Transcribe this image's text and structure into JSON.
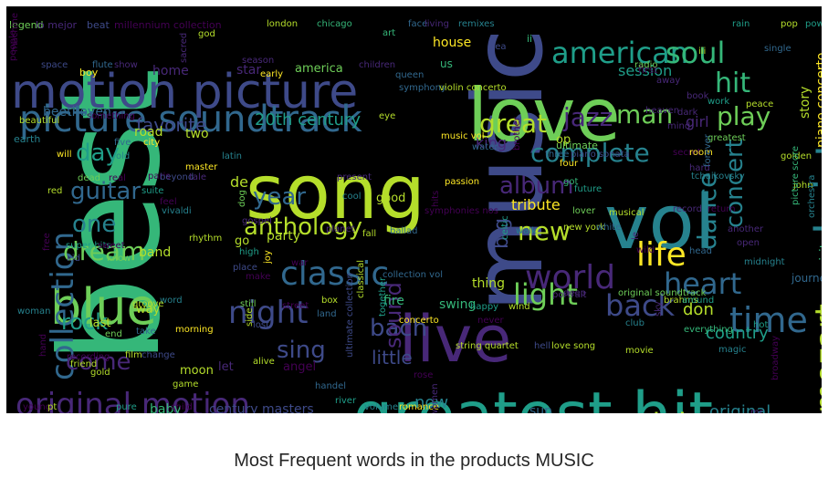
{
  "title": "Most Frequent words in the products MUSIC",
  "colors": {
    "background": "#000000",
    "palette": [
      "#440154",
      "#482878",
      "#3e4a89",
      "#31688e",
      "#26828e",
      "#1f9e89",
      "#35b779",
      "#6ece58",
      "#b5de2b",
      "#fde725"
    ]
  },
  "words": [
    {
      "text": "best",
      "color": "#35b779"
    },
    {
      "text": "music",
      "color": "#3e4a89"
    },
    {
      "text": "live",
      "color": "#482878"
    },
    {
      "text": "song",
      "color": "#b5de2b"
    },
    {
      "text": "vol",
      "color": "#26828e"
    },
    {
      "text": "love",
      "color": "#6ece58"
    },
    {
      "text": "greatest hit",
      "color": "#1f9e89"
    },
    {
      "text": "motion picture",
      "color": "#3e4a89"
    },
    {
      "text": "blue",
      "color": "#6ece58"
    },
    {
      "text": "picture soundtrack",
      "color": "#31688e"
    },
    {
      "text": "christmas",
      "color": "#26828e"
    },
    {
      "text": "collection",
      "color": "#31688e"
    },
    {
      "text": "original motion",
      "color": "#482878"
    },
    {
      "text": "american",
      "color": "#1f9e89"
    },
    {
      "text": "soul",
      "color": "#35b779"
    },
    {
      "text": "hit",
      "color": "#35b779"
    },
    {
      "text": "time",
      "color": "#31688e"
    },
    {
      "text": "world",
      "color": "#482878"
    },
    {
      "text": "night",
      "color": "#3e4a89"
    },
    {
      "text": "classic",
      "color": "#31688e"
    },
    {
      "text": "life",
      "color": "#fde725"
    },
    {
      "text": "mozart",
      "color": "#b5de2b"
    },
    {
      "text": "essential",
      "color": "#b5de2b"
    },
    {
      "text": "black",
      "color": "#482878"
    },
    {
      "text": "heart",
      "color": "#31688e"
    },
    {
      "text": "light",
      "color": "#6ece58"
    },
    {
      "text": "back",
      "color": "#3e4a89"
    },
    {
      "text": "dance",
      "color": "#26828e"
    },
    {
      "text": "play",
      "color": "#6ece58"
    },
    {
      "text": "man",
      "color": "#6ece58"
    },
    {
      "text": "jazz",
      "color": "#482878"
    },
    {
      "text": "great",
      "color": "#b5de2b"
    },
    {
      "text": "anthology",
      "color": "#b5de2b"
    },
    {
      "text": "complete",
      "color": "#26828e"
    },
    {
      "text": "year",
      "color": "#31688e"
    },
    {
      "text": "concert",
      "color": "#26828e"
    },
    {
      "text": "dream",
      "color": "#6ece58"
    },
    {
      "text": "guitar",
      "color": "#31688e"
    },
    {
      "text": "day",
      "color": "#1f9e89"
    },
    {
      "text": "one",
      "color": "#26828e"
    },
    {
      "text": "rock",
      "color": "#1f9e89"
    },
    {
      "text": "come",
      "color": "#482878"
    },
    {
      "text": "sing",
      "color": "#3e4a89"
    },
    {
      "text": "bach",
      "color": "#3e4a89"
    },
    {
      "text": "sound",
      "color": "#482878"
    },
    {
      "text": "album",
      "color": "#482878"
    },
    {
      "text": "new",
      "color": "#b5de2b"
    },
    {
      "text": "big",
      "color": "#3e4a89"
    },
    {
      "text": "favorite",
      "color": "#3e4a89"
    },
    {
      "text": "20th century",
      "color": "#1f9e89"
    },
    {
      "text": "little",
      "color": "#3e4a89"
    },
    {
      "text": "original",
      "color": "#26828e"
    },
    {
      "text": "now",
      "color": "#26828e"
    },
    {
      "text": "country",
      "color": "#1f9e89"
    },
    {
      "text": "session",
      "color": "#1f9e89"
    },
    {
      "text": "don",
      "color": "#b5de2b"
    },
    {
      "text": "girl",
      "color": "#482878"
    },
    {
      "text": "king",
      "color": "#482878"
    },
    {
      "text": "tribute",
      "color": "#fde725"
    },
    {
      "text": "piano concerto",
      "color": "#fde725"
    },
    {
      "text": "sun",
      "color": "#31688e"
    },
    {
      "text": "house",
      "color": "#fde725"
    },
    {
      "text": "home",
      "color": "#482878"
    },
    {
      "text": "star",
      "color": "#482878"
    },
    {
      "text": "beethoven",
      "color": "#31688e"
    },
    {
      "text": "road",
      "color": "#b5de2b"
    },
    {
      "text": "two",
      "color": "#b5de2b"
    },
    {
      "text": "de",
      "color": "#b5de2b"
    },
    {
      "text": "america",
      "color": "#6ece58"
    },
    {
      "text": "spirit",
      "color": "#35b779"
    },
    {
      "text": "story",
      "color": "#b5de2b"
    },
    {
      "text": "swing",
      "color": "#35b779"
    },
    {
      "text": "thing",
      "color": "#b5de2b"
    },
    {
      "text": "fire",
      "color": "#35b779"
    },
    {
      "text": "band",
      "color": "#b5de2b"
    },
    {
      "text": "way",
      "color": "#b5de2b"
    },
    {
      "text": "last",
      "color": "#b5de2b"
    },
    {
      "text": "let",
      "color": "#482878"
    },
    {
      "text": "moon",
      "color": "#b5de2b"
    },
    {
      "text": "angel",
      "color": "#440154"
    },
    {
      "text": "century masters",
      "color": "#3e4a89"
    },
    {
      "text": "baby",
      "color": "#35b779"
    },
    {
      "text": "party",
      "color": "#b5de2b"
    },
    {
      "text": "go",
      "color": "#b5de2b"
    },
    {
      "text": "journey",
      "color": "#31688e"
    },
    {
      "text": "good",
      "color": "#b5de2b"
    },
    {
      "text": "ultimate",
      "color": "#6ece58"
    },
    {
      "text": "eye",
      "color": "#b5de2b"
    },
    {
      "text": "first",
      "color": "#440154"
    },
    {
      "text": "op",
      "color": "#b5de2b"
    },
    {
      "text": "legend",
      "color": "#6ece58"
    },
    {
      "text": "lo mejor",
      "color": "#482878"
    },
    {
      "text": "beat",
      "color": "#3e4a89"
    },
    {
      "text": "millennium collection",
      "color": "#440154"
    },
    {
      "text": "london",
      "color": "#b5de2b"
    },
    {
      "text": "chicago",
      "color": "#35b779"
    },
    {
      "text": "art",
      "color": "#35b779"
    },
    {
      "text": "face",
      "color": "#31688e"
    },
    {
      "text": "living",
      "color": "#482878"
    },
    {
      "text": "remixes",
      "color": "#26828e"
    },
    {
      "text": "rain",
      "color": "#1f9e89"
    },
    {
      "text": "pop",
      "color": "#b5de2b"
    },
    {
      "text": "power",
      "color": "#1f9e89"
    },
    {
      "text": "god",
      "color": "#b5de2b"
    },
    {
      "text": "people",
      "color": "#440154"
    },
    {
      "text": "space",
      "color": "#3e4a89"
    },
    {
      "text": "flute",
      "color": "#31688e"
    },
    {
      "text": "show",
      "color": "#482878"
    },
    {
      "text": "sacred",
      "color": "#482878"
    },
    {
      "text": "season",
      "color": "#482878"
    },
    {
      "text": "children",
      "color": "#482878"
    },
    {
      "text": "sea",
      "color": "#3e4a89"
    },
    {
      "text": "single",
      "color": "#31688e"
    },
    {
      "text": "boy",
      "color": "#fde725"
    },
    {
      "text": "early",
      "color": "#fde725"
    },
    {
      "text": "queen",
      "color": "#31688e"
    },
    {
      "text": "us",
      "color": "#35b779"
    },
    {
      "text": "ii",
      "color": "#35b779"
    },
    {
      "text": "iii",
      "color": "#b5de2b"
    },
    {
      "text": "radio",
      "color": "#6ece58"
    },
    {
      "text": "away",
      "color": "#482878"
    },
    {
      "text": "symphony",
      "color": "#31688e"
    },
    {
      "text": "violin concerto",
      "color": "#b5de2b"
    },
    {
      "text": "book",
      "color": "#482878"
    },
    {
      "text": "work",
      "color": "#1f9e89"
    },
    {
      "text": "peace",
      "color": "#b5de2b"
    },
    {
      "text": "heaven",
      "color": "#482878"
    },
    {
      "text": "dark",
      "color": "#482878"
    },
    {
      "text": "something",
      "color": "#440154"
    },
    {
      "text": "beautiful",
      "color": "#b5de2b"
    },
    {
      "text": "earth",
      "color": "#26828e"
    },
    {
      "text": "five",
      "color": "#31688e"
    },
    {
      "text": "city",
      "color": "#fde725"
    },
    {
      "text": "water",
      "color": "#31688e"
    },
    {
      "text": "music vol",
      "color": "#fde725"
    },
    {
      "text": "brother",
      "color": "#440154"
    },
    {
      "text": "three",
      "color": "#31688e"
    },
    {
      "text": "greatest",
      "color": "#6ece58"
    },
    {
      "text": "secret",
      "color": "#440154"
    },
    {
      "text": "room",
      "color": "#fde725"
    },
    {
      "text": "piano sonata",
      "color": "#3e4a89"
    },
    {
      "text": "mind",
      "color": "#482878"
    },
    {
      "text": "golden",
      "color": "#b5de2b"
    },
    {
      "text": "will",
      "color": "#fde725"
    },
    {
      "text": "old",
      "color": "#26828e"
    },
    {
      "text": "latin",
      "color": "#26828e"
    },
    {
      "text": "paris",
      "color": "#440154"
    },
    {
      "text": "master",
      "color": "#fde725"
    },
    {
      "text": "passion",
      "color": "#fde725"
    },
    {
      "text": "four",
      "color": "#fde725"
    },
    {
      "text": "hard",
      "color": "#482878"
    },
    {
      "text": "got",
      "color": "#35b779"
    },
    {
      "text": "tchaikovsky",
      "color": "#26828e"
    },
    {
      "text": "forever",
      "color": "#31688e"
    },
    {
      "text": "dead",
      "color": "#6ece58"
    },
    {
      "text": "real",
      "color": "#440154"
    },
    {
      "text": "beyond",
      "color": "#3e4a89"
    },
    {
      "text": "tale",
      "color": "#482878"
    },
    {
      "text": "present",
      "color": "#482878"
    },
    {
      "text": "future",
      "color": "#1f9e89"
    },
    {
      "text": "john",
      "color": "#b5de2b"
    },
    {
      "text": "red",
      "color": "#b5de2b"
    },
    {
      "text": "suite",
      "color": "#1f9e89"
    },
    {
      "text": "cool",
      "color": "#26828e"
    },
    {
      "text": "feel",
      "color": "#440154"
    },
    {
      "text": "vivaldi",
      "color": "#26828e"
    },
    {
      "text": "symphonies nos",
      "color": "#440154"
    },
    {
      "text": "hits",
      "color": "#440154"
    },
    {
      "text": "lover",
      "color": "#6ece58"
    },
    {
      "text": "musical",
      "color": "#b5de2b"
    },
    {
      "text": "record",
      "color": "#482878"
    },
    {
      "text": "return",
      "color": "#440154"
    },
    {
      "text": "orchestra",
      "color": "#26828e"
    },
    {
      "text": "picture score",
      "color": "#35b779"
    },
    {
      "text": "another",
      "color": "#482878"
    },
    {
      "text": "dog",
      "color": "#6ece58"
    },
    {
      "text": "gospel",
      "color": "#482878"
    },
    {
      "text": "fall",
      "color": "#b5de2b"
    },
    {
      "text": "ballad",
      "color": "#31688e"
    },
    {
      "text": "walk",
      "color": "#26828e"
    },
    {
      "text": "new york",
      "color": "#b5de2b"
    },
    {
      "text": "white",
      "color": "#31688e"
    },
    {
      "text": "le",
      "color": "#482878"
    },
    {
      "text": "free",
      "color": "#440154"
    },
    {
      "text": "super hits",
      "color": "#1f9e89"
    },
    {
      "text": "sweet",
      "color": "#440154"
    },
    {
      "text": "rhythm",
      "color": "#b5de2b"
    },
    {
      "text": "high",
      "color": "#1f9e89"
    },
    {
      "text": "planet",
      "color": "#482878"
    },
    {
      "text": "celtic",
      "color": "#1f9e89"
    },
    {
      "text": "wild",
      "color": "#440154"
    },
    {
      "text": "head",
      "color": "#31688e"
    },
    {
      "text": "open",
      "color": "#482878"
    },
    {
      "text": "midnight",
      "color": "#26828e"
    },
    {
      "text": "kid",
      "color": "#3e4a89"
    },
    {
      "text": "know",
      "color": "#6ece58"
    },
    {
      "text": "place",
      "color": "#3e4a89"
    },
    {
      "text": "joy",
      "color": "#fde725"
    },
    {
      "text": "make",
      "color": "#440154"
    },
    {
      "text": "war",
      "color": "#440154"
    },
    {
      "text": "classical",
      "color": "#b5de2b"
    },
    {
      "text": "collection vol",
      "color": "#31688e"
    },
    {
      "text": "deep",
      "color": "#482878"
    },
    {
      "text": "portrait",
      "color": "#482878"
    },
    {
      "text": "original soundtrack",
      "color": "#6ece58"
    },
    {
      "text": "brahms",
      "color": "#b5de2b"
    },
    {
      "text": "around",
      "color": "#1f9e89"
    },
    {
      "text": "word",
      "color": "#26828e"
    },
    {
      "text": "still",
      "color": "#6ece58"
    },
    {
      "text": "street",
      "color": "#440154"
    },
    {
      "text": "box",
      "color": "#b5de2b"
    },
    {
      "text": "together",
      "color": "#1f9e89"
    },
    {
      "text": "happy",
      "color": "#1f9e89"
    },
    {
      "text": "wind",
      "color": "#b5de2b"
    },
    {
      "text": "woman",
      "color": "#26828e"
    },
    {
      "text": "groove",
      "color": "#b5de2b"
    },
    {
      "text": "land",
      "color": "#31688e"
    },
    {
      "text": "lost",
      "color": "#3e4a89"
    },
    {
      "text": "concerto",
      "color": "#fde725"
    },
    {
      "text": "never",
      "color": "#440154"
    },
    {
      "text": "club",
      "color": "#26828e"
    },
    {
      "text": "sky",
      "color": "#482878"
    },
    {
      "text": "everything",
      "color": "#35b779"
    },
    {
      "text": "hot",
      "color": "#1f9e89"
    },
    {
      "text": "end",
      "color": "#6ece58"
    },
    {
      "text": "take",
      "color": "#31688e"
    },
    {
      "text": "morning",
      "color": "#fde725"
    },
    {
      "text": "side",
      "color": "#b5de2b"
    },
    {
      "text": "ultimate collection",
      "color": "#3e4a89"
    },
    {
      "text": "recording",
      "color": "#440154"
    },
    {
      "text": "film",
      "color": "#b5de2b"
    },
    {
      "text": "change",
      "color": "#3e4a89"
    },
    {
      "text": "alive",
      "color": "#b5de2b"
    },
    {
      "text": "string quartet",
      "color": "#b5de2b"
    },
    {
      "text": "hell",
      "color": "#3e4a89"
    },
    {
      "text": "love song",
      "color": "#b5de2b"
    },
    {
      "text": "movie",
      "color": "#b5de2b"
    },
    {
      "text": "magic",
      "color": "#26828e"
    },
    {
      "text": "broadway",
      "color": "#440154"
    },
    {
      "text": "hand",
      "color": "#440154"
    },
    {
      "text": "friend",
      "color": "#b5de2b"
    },
    {
      "text": "gold",
      "color": "#b5de2b"
    },
    {
      "text": "game",
      "color": "#b5de2b"
    },
    {
      "text": "rose",
      "color": "#440154"
    },
    {
      "text": "handel",
      "color": "#31688e"
    },
    {
      "text": "river",
      "color": "#1f9e89"
    },
    {
      "text": "young",
      "color": "#440154"
    },
    {
      "text": "pt",
      "color": "#b5de2b"
    },
    {
      "text": "pure",
      "color": "#1f9e89"
    },
    {
      "text": "child",
      "color": "#440154"
    },
    {
      "text": "volume",
      "color": "#26828e"
    },
    {
      "text": "romance",
      "color": "#fde725"
    },
    {
      "text": "women",
      "color": "#482878"
    },
    {
      "text": "mr",
      "color": "#482878"
    },
    {
      "text": "machine",
      "color": "#440154"
    }
  ]
}
